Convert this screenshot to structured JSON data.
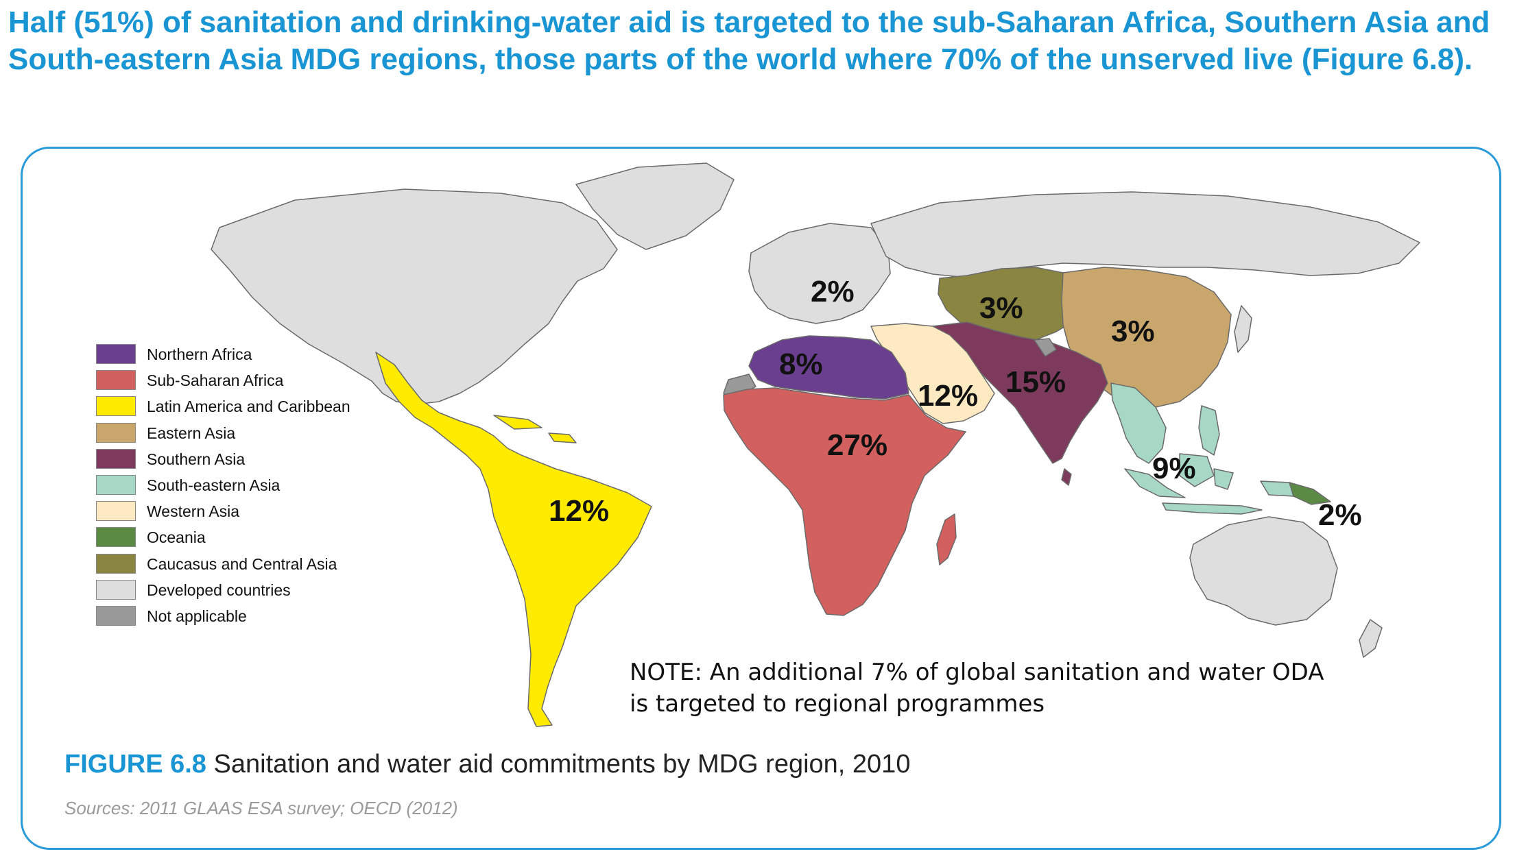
{
  "headline": "Half (51%) of sanitation and drinking-water aid is targeted to the sub-Saharan Africa, Southern Asia and South-eastern Asia MDG regions, those parts of the world where 70% of the unserved live (Figure 6.8).",
  "legend": [
    {
      "label": "Northern Africa",
      "color": "#6b3f8f"
    },
    {
      "label": "Sub-Saharan Africa",
      "color": "#d2605f"
    },
    {
      "label": "Latin America and Caribbean",
      "color": "#ffeb00"
    },
    {
      "label": "Eastern Asia",
      "color": "#c9a66b"
    },
    {
      "label": "Southern Asia",
      "color": "#7e3a5c"
    },
    {
      "label": "South-eastern Asia",
      "color": "#a7d7c5"
    },
    {
      "label": "Western Asia",
      "color": "#fde9c2"
    },
    {
      "label": "Oceania",
      "color": "#5a8a43"
    },
    {
      "label": "Caucasus and Central Asia",
      "color": "#8a8540"
    },
    {
      "label": "Developed countries",
      "color": "#dedede"
    },
    {
      "label": "Not applicable",
      "color": "#999999"
    }
  ],
  "regions": {
    "developed_europe": {
      "percent": "2%"
    },
    "caucasus_central_asia": {
      "percent": "3%"
    },
    "eastern_asia": {
      "percent": "3%"
    },
    "northern_africa": {
      "percent": "8%"
    },
    "western_asia": {
      "percent": "12%"
    },
    "southern_asia": {
      "percent": "15%"
    },
    "sub_saharan_africa": {
      "percent": "27%"
    },
    "latin_america": {
      "percent": "12%"
    },
    "south_eastern_asia": {
      "percent": "9%"
    },
    "oceania": {
      "percent": "2%"
    }
  },
  "note": {
    "line1": "NOTE: An additional 7% of global sanitation and water ODA",
    "line2": "is targeted to regional programmes"
  },
  "caption": {
    "figure": "FIGURE 6.8",
    "text": " Sanitation and water aid commitments by MDG region, 2010"
  },
  "sources": "Sources: 2011 GLAAS ESA survey; OECD (2012)",
  "colors": {
    "accent": "#1a95d3",
    "frame": "#2a9ad8",
    "water": "#ffffff"
  }
}
